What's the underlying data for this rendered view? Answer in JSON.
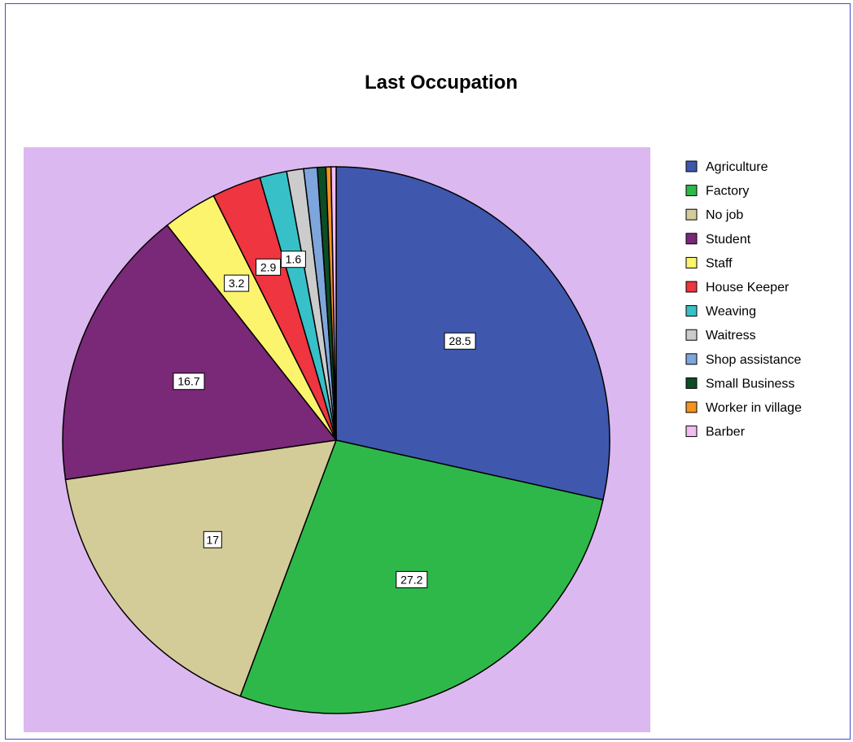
{
  "chart_data": {
    "type": "pie",
    "title": "Last Occupation",
    "background_color": "#dcb8f0",
    "categories": [
      "Agriculture",
      "Factory",
      "No job",
      "Student",
      "Staff",
      "House Keeper",
      "Weaving",
      "Waitress",
      "Shop assistance",
      "Small Business",
      "Worker in village",
      "Barber"
    ],
    "values": [
      28.5,
      27.2,
      17,
      16.7,
      3.2,
      2.9,
      1.6,
      1.0,
      0.8,
      0.5,
      0.3,
      0.3
    ],
    "data_labels": [
      "28.5",
      "27.2",
      "17",
      "16.7",
      "3.2",
      "2.9",
      "1.6",
      "",
      "",
      "",
      "",
      ""
    ],
    "colors": [
      "#3f58ae",
      "#2fb84a",
      "#d4cc98",
      "#7a2878",
      "#fbf46c",
      "#ee3540",
      "#37c0c8",
      "#cccccc",
      "#7ea6dc",
      "#0c4d26",
      "#f4931f",
      "#f2bcf2"
    ],
    "legend_position": "right"
  }
}
